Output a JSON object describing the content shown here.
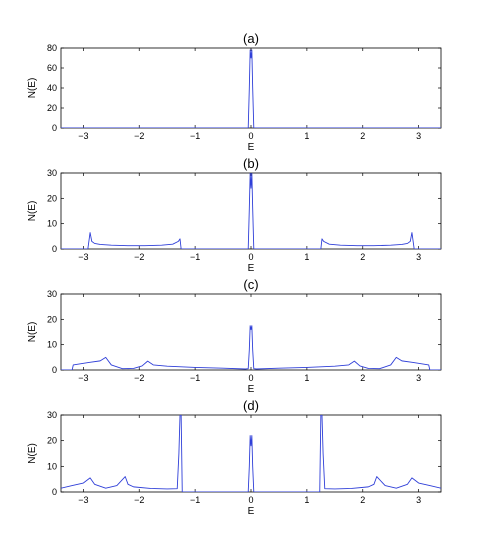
{
  "chart_data": [
    {
      "type": "line",
      "title": "(a)",
      "xlabel": "E",
      "ylabel": "N(E)",
      "xlim": [
        -3.4,
        3.4
      ],
      "ylim": [
        0,
        80
      ],
      "xticks": [
        -3,
        -2,
        -1,
        0,
        1,
        2,
        3
      ],
      "yticks": [
        0,
        20,
        40,
        60,
        80
      ],
      "grid": false,
      "color": "#2f3fd8",
      "series": [
        {
          "x": [
            -3.4,
            -0.1,
            -0.05,
            -0.03,
            -0.015,
            0,
            0.015,
            0.03,
            0.05,
            0.1,
            3.4
          ],
          "y": [
            0,
            0,
            0,
            40,
            78,
            70,
            78,
            40,
            0,
            0,
            0
          ]
        }
      ]
    },
    {
      "type": "line",
      "title": "(b)",
      "xlabel": "E",
      "ylabel": "N(E)",
      "xlim": [
        -3.4,
        3.4
      ],
      "ylim": [
        0,
        30
      ],
      "xticks": [
        -3,
        -2,
        -1,
        0,
        1,
        2,
        3
      ],
      "yticks": [
        0,
        10,
        20,
        30
      ],
      "grid": false,
      "color": "#2f3fd8",
      "series": [
        {
          "x": [
            -3.4,
            -3.0,
            -2.92,
            -2.88,
            -2.85,
            -2.8,
            -2.7,
            -2.5,
            -2.2,
            -1.9,
            -1.6,
            -1.4,
            -1.3,
            -1.27,
            -1.25,
            -0.1,
            -0.05,
            -0.03,
            -0.015,
            0,
            0.015,
            0.03,
            0.05,
            0.1,
            1.25,
            1.27,
            1.3,
            1.4,
            1.6,
            1.9,
            2.2,
            2.5,
            2.7,
            2.8,
            2.85,
            2.88,
            2.92,
            3.0,
            3.4
          ],
          "y": [
            0,
            0,
            0,
            6.5,
            3,
            2.2,
            1.8,
            1.5,
            1.3,
            1.3,
            1.5,
            1.9,
            3,
            4,
            0,
            0,
            0,
            16,
            30,
            24,
            30,
            16,
            0,
            0,
            0,
            4,
            3,
            1.9,
            1.5,
            1.3,
            1.3,
            1.5,
            1.8,
            2.2,
            3,
            6.5,
            0,
            0,
            0
          ]
        }
      ]
    },
    {
      "type": "line",
      "title": "(c)",
      "xlabel": "E",
      "ylabel": "N(E)",
      "xlim": [
        -3.4,
        3.4
      ],
      "ylim": [
        0,
        30
      ],
      "xticks": [
        -3,
        -2,
        -1,
        0,
        1,
        2,
        3
      ],
      "yticks": [
        0,
        10,
        20,
        30
      ],
      "grid": false,
      "color": "#2f3fd8",
      "series": [
        {
          "x": [
            -3.4,
            -3.2,
            -3.18,
            -2.9,
            -2.7,
            -2.6,
            -2.5,
            -2.3,
            -2.1,
            -1.95,
            -1.85,
            -1.75,
            -1.5,
            -1.0,
            -0.5,
            -0.1,
            -0.05,
            -0.03,
            -0.015,
            0,
            0.015,
            0.03,
            0.05,
            0.1,
            0.5,
            1.0,
            1.5,
            1.75,
            1.85,
            1.95,
            2.1,
            2.3,
            2.5,
            2.6,
            2.7,
            2.9,
            3.18,
            3.2,
            3.4
          ],
          "y": [
            0,
            0,
            2,
            3,
            3.6,
            5,
            2,
            0.5,
            0.6,
            1.6,
            3.5,
            2,
            1.5,
            1.0,
            0.7,
            0.4,
            0.5,
            8,
            17.5,
            16,
            17.5,
            8,
            0.5,
            0.4,
            0.7,
            1.0,
            1.5,
            2,
            3.5,
            1.6,
            0.6,
            0.5,
            2,
            5,
            3.6,
            3,
            2,
            0,
            0
          ]
        }
      ]
    },
    {
      "type": "line",
      "title": "(d)",
      "xlabel": "E",
      "ylabel": "N(E)",
      "xlim": [
        -3.4,
        3.4
      ],
      "ylim": [
        0,
        30
      ],
      "xticks": [
        -3,
        -2,
        -1,
        0,
        1,
        2,
        3
      ],
      "yticks": [
        0,
        10,
        20,
        30
      ],
      "grid": false,
      "color": "#2f3fd8",
      "series": [
        {
          "x": [
            -3.4,
            -3.2,
            -3.0,
            -2.88,
            -2.8,
            -2.6,
            -2.4,
            -2.25,
            -2.2,
            -2.1,
            -1.8,
            -1.5,
            -1.32,
            -1.29,
            -1.27,
            -1.25,
            -1.23,
            -0.1,
            -0.05,
            -0.03,
            -0.015,
            0,
            0.015,
            0.03,
            0.05,
            0.1,
            1.23,
            1.25,
            1.27,
            1.29,
            1.32,
            1.5,
            1.8,
            2.1,
            2.2,
            2.25,
            2.4,
            2.6,
            2.8,
            2.88,
            3.0,
            3.2,
            3.4
          ],
          "y": [
            1.5,
            2.5,
            3.5,
            5.5,
            3,
            1.5,
            2.5,
            6,
            3,
            2,
            1.4,
            1.2,
            1.3,
            15,
            30,
            30,
            0,
            0,
            0,
            10,
            22,
            18,
            22,
            10,
            0,
            0,
            0,
            30,
            30,
            15,
            1.3,
            1.2,
            1.4,
            2,
            3,
            6,
            2.5,
            1.5,
            3,
            5.5,
            3.5,
            2.5,
            1.5
          ]
        }
      ]
    }
  ]
}
